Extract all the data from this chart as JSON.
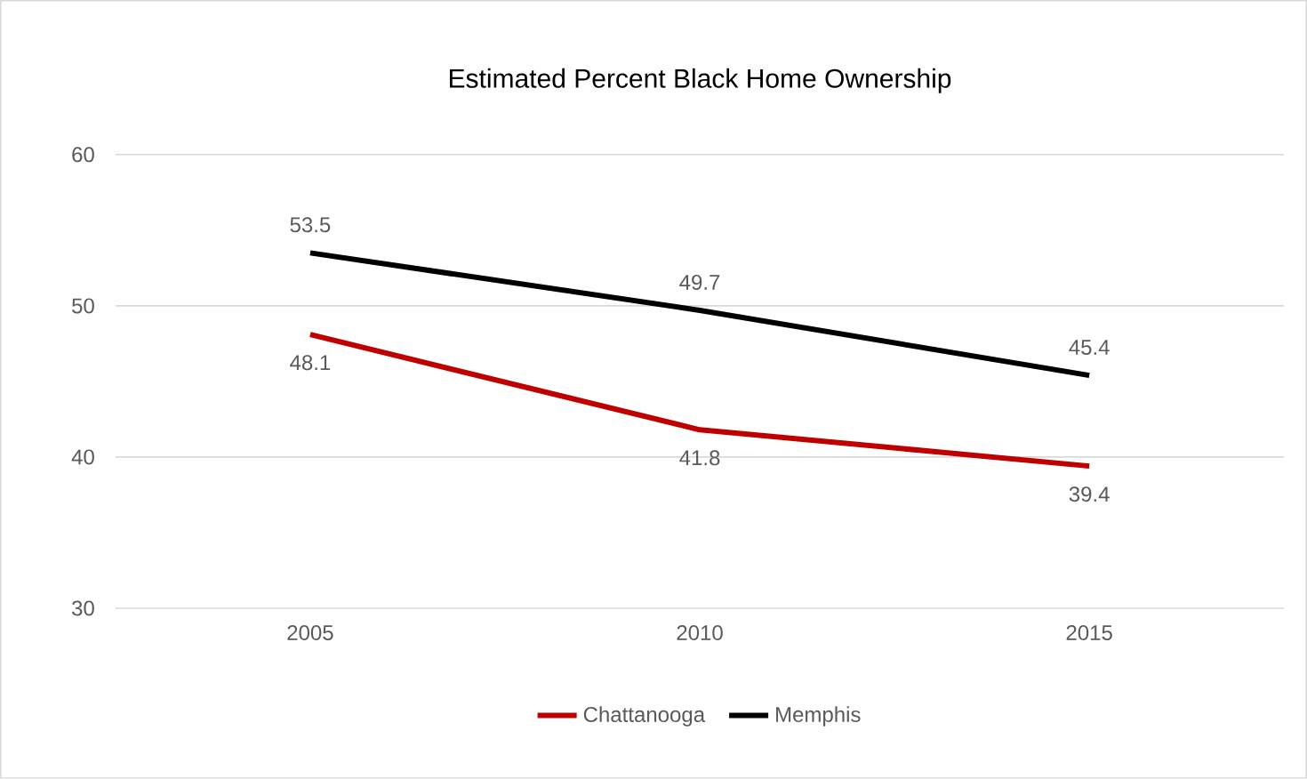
{
  "chart_data": {
    "type": "line",
    "title": "Estimated Percent Black Home Ownership",
    "categories": [
      "2005",
      "2010",
      "2015"
    ],
    "series": [
      {
        "name": "Chattanooga",
        "color": "#c00000",
        "values": [
          48.1,
          41.8,
          39.4
        ]
      },
      {
        "name": "Memphis",
        "color": "#000000",
        "values": [
          53.5,
          49.7,
          45.4
        ]
      }
    ],
    "ylim": [
      30,
      60
    ],
    "yticks": [
      30,
      40,
      50,
      60
    ],
    "grid": "y",
    "legend": "bottom",
    "data_labels": true,
    "marker": "none",
    "line_style": "solid"
  }
}
